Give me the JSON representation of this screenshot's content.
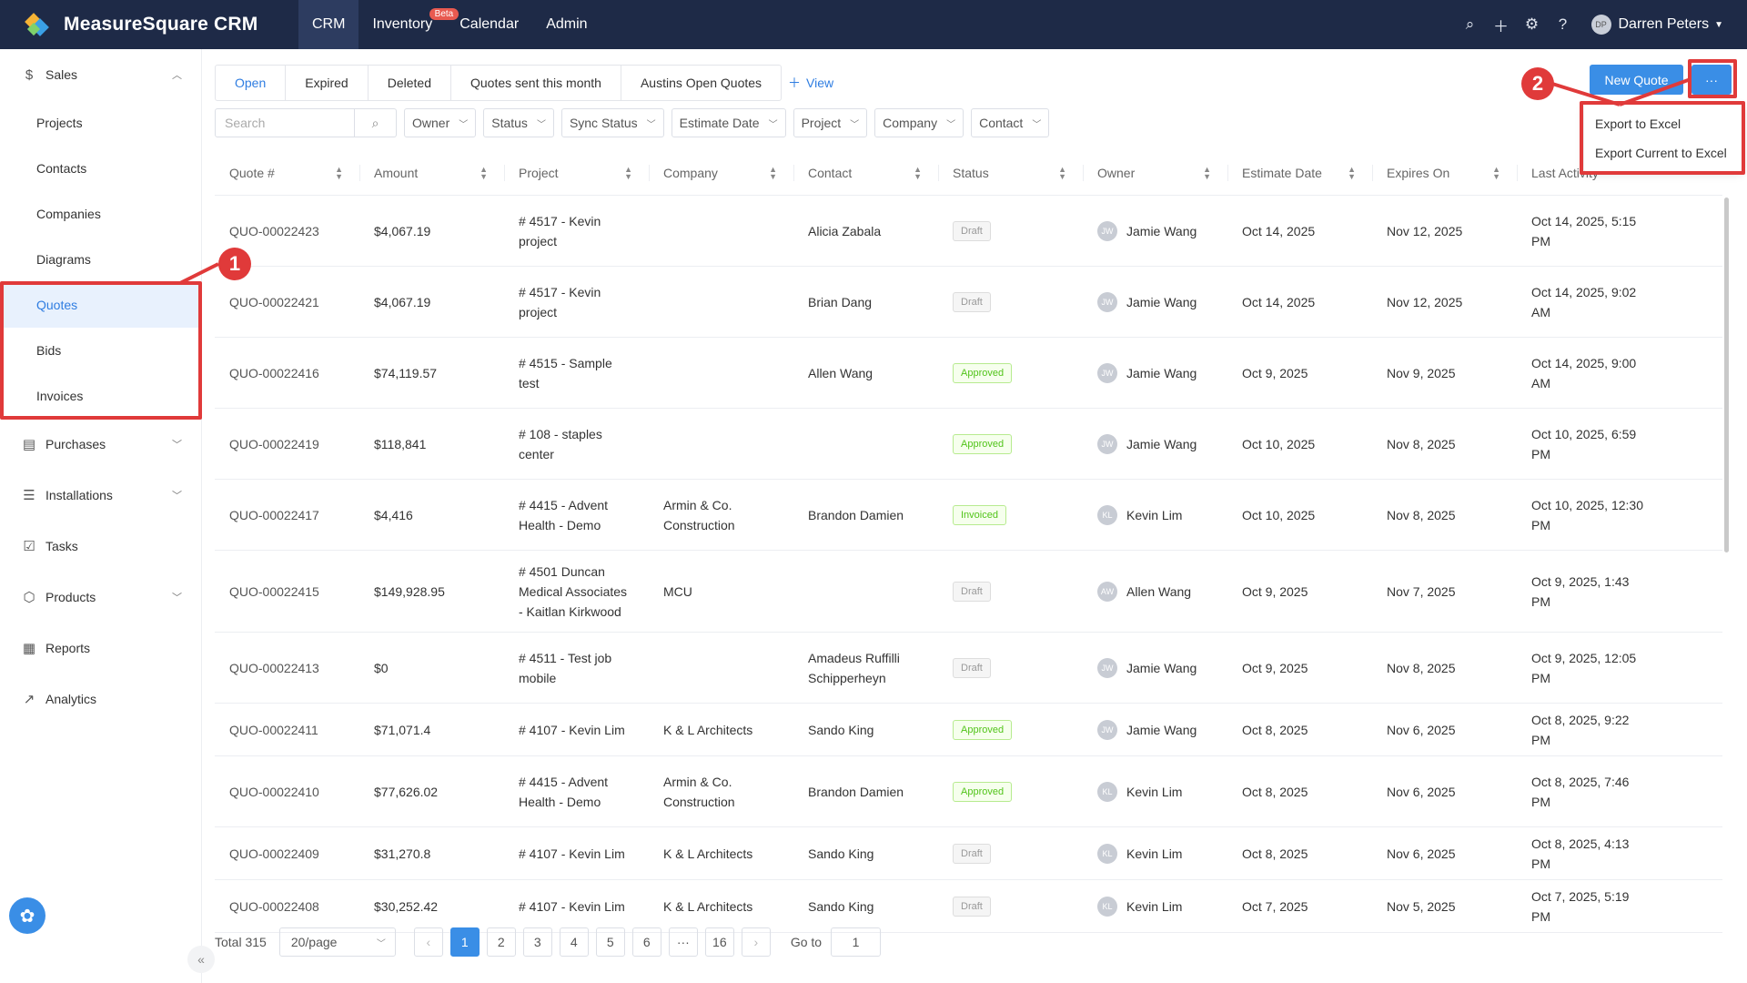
{
  "app": {
    "name": "MeasureSquare CRM"
  },
  "nav": [
    {
      "label": "CRM",
      "active": true
    },
    {
      "label": "Inventory",
      "badge": "Beta"
    },
    {
      "label": "Calendar"
    },
    {
      "label": "Admin"
    }
  ],
  "user": {
    "initials": "DP",
    "name": "Darren Peters"
  },
  "sidebar": {
    "sales": "Sales",
    "sales_items": [
      "Projects",
      "Contacts",
      "Companies",
      "Diagrams",
      "Quotes",
      "Bids",
      "Invoices"
    ],
    "purchases": "Purchases",
    "installations": "Installations",
    "tasks": "Tasks",
    "products": "Products",
    "reports": "Reports",
    "analytics": "Analytics"
  },
  "tabs": [
    "Open",
    "Expired",
    "Deleted",
    "Quotes sent this month",
    "Austins Open Quotes"
  ],
  "add_view": "View",
  "buttons": {
    "new_quote": "New Quote",
    "more": "···"
  },
  "search": {
    "placeholder": "Search"
  },
  "filters": [
    "Owner",
    "Status",
    "Sync Status",
    "Estimate Date",
    "Project",
    "Company",
    "Contact"
  ],
  "columns": [
    "Quote #",
    "Amount",
    "Project",
    "Company",
    "Contact",
    "Status",
    "Owner",
    "Estimate Date",
    "Expires On",
    "Last Activity"
  ],
  "rows": [
    {
      "quote": "QUO-00022423",
      "amount": "$4,067.19",
      "project": "# 4517 - Kevin project",
      "company": "",
      "contact": "Alicia Zabala",
      "status": "Draft",
      "owner_initials": "JW",
      "owner": "Jamie Wang",
      "estimate": "Oct 14, 2025",
      "expires": "Nov 12, 2025",
      "last": "Oct 14, 2025, 5:15 PM"
    },
    {
      "quote": "QUO-00022421",
      "amount": "$4,067.19",
      "project": "# 4517 - Kevin project",
      "company": "",
      "contact": "Brian Dang",
      "status": "Draft",
      "owner_initials": "JW",
      "owner": "Jamie Wang",
      "estimate": "Oct 14, 2025",
      "expires": "Nov 12, 2025",
      "last": "Oct 14, 2025, 9:02 AM"
    },
    {
      "quote": "QUO-00022416",
      "amount": "$74,119.57",
      "project": "# 4515 - Sample test",
      "company": "",
      "contact": "Allen Wang",
      "status": "Approved",
      "owner_initials": "JW",
      "owner": "Jamie Wang",
      "estimate": "Oct 9, 2025",
      "expires": "Nov 9, 2025",
      "last": "Oct 14, 2025, 9:00 AM"
    },
    {
      "quote": "QUO-00022419",
      "amount": "$118,841",
      "project": "# 108 - staples center",
      "company": "",
      "contact": "",
      "status": "Approved",
      "owner_initials": "JW",
      "owner": "Jamie Wang",
      "estimate": "Oct 10, 2025",
      "expires": "Nov 8, 2025",
      "last": "Oct 10, 2025, 6:59 PM"
    },
    {
      "quote": "QUO-00022417",
      "amount": "$4,416",
      "project": "# 4415 - Advent Health - Demo",
      "company": "Armin & Co. Construction",
      "contact": "Brandon Damien",
      "status": "Invoiced",
      "owner_initials": "KL",
      "owner": "Kevin Lim",
      "estimate": "Oct 10, 2025",
      "expires": "Nov 8, 2025",
      "last": "Oct 10, 2025, 12:30 PM"
    },
    {
      "quote": "QUO-00022415",
      "amount": "$149,928.95",
      "project": "# 4501 Duncan Medical Associates - Kaitlan Kirkwood",
      "company": "MCU",
      "contact": "",
      "status": "Draft",
      "owner_initials": "AW",
      "owner": "Allen Wang",
      "estimate": "Oct 9, 2025",
      "expires": "Nov 7, 2025",
      "last": "Oct 9, 2025, 1:43 PM"
    },
    {
      "quote": "QUO-00022413",
      "amount": "$0",
      "project": "# 4511 - Test job mobile",
      "company": "",
      "contact": "Amadeus Ruffilli Schipperheyn",
      "status": "Draft",
      "owner_initials": "JW",
      "owner": "Jamie Wang",
      "estimate": "Oct 9, 2025",
      "expires": "Nov 8, 2025",
      "last": "Oct 9, 2025, 12:05 PM"
    },
    {
      "quote": "QUO-00022411",
      "amount": "$71,071.4",
      "project": "# 4107 - Kevin Lim",
      "company": "K & L Architects",
      "contact": "Sando King",
      "status": "Approved",
      "owner_initials": "JW",
      "owner": "Jamie Wang",
      "estimate": "Oct 8, 2025",
      "expires": "Nov 6, 2025",
      "last": "Oct 8, 2025, 9:22 PM"
    },
    {
      "quote": "QUO-00022410",
      "amount": "$77,626.02",
      "project": "# 4415 - Advent Health - Demo",
      "company": "Armin & Co. Construction",
      "contact": "Brandon Damien",
      "status": "Approved",
      "owner_initials": "KL",
      "owner": "Kevin Lim",
      "estimate": "Oct 8, 2025",
      "expires": "Nov 6, 2025",
      "last": "Oct 8, 2025, 7:46 PM"
    },
    {
      "quote": "QUO-00022409",
      "amount": "$31,270.8",
      "project": "# 4107 - Kevin Lim",
      "company": "K & L Architects",
      "contact": "Sando King",
      "status": "Draft",
      "owner_initials": "KL",
      "owner": "Kevin Lim",
      "estimate": "Oct 8, 2025",
      "expires": "Nov 6, 2025",
      "last": "Oct 8, 2025, 4:13 PM"
    },
    {
      "quote": "QUO-00022408",
      "amount": "$30,252.42",
      "project": "# 4107 - Kevin Lim",
      "company": "K & L Architects",
      "contact": "Sando King",
      "status": "Draft",
      "owner_initials": "KL",
      "owner": "Kevin Lim",
      "estimate": "Oct 7, 2025",
      "expires": "Nov 5, 2025",
      "last": "Oct 7, 2025, 5:19 PM"
    }
  ],
  "pagination": {
    "total": "Total 315",
    "page_size": "20/page",
    "pages": [
      "1",
      "2",
      "3",
      "4",
      "5",
      "6",
      "···",
      "16"
    ],
    "goto_label": "Go to",
    "goto_value": "1"
  },
  "dropdown": [
    "Export to Excel",
    "Export Current to Excel"
  ],
  "annotations": {
    "one": "1",
    "two": "2",
    "color": "#e03a3a"
  }
}
